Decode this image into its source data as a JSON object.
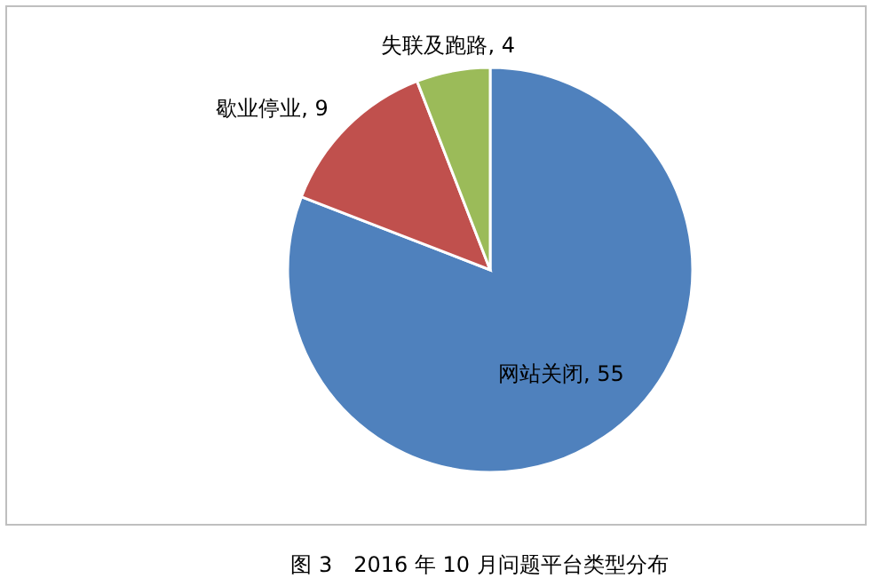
{
  "chart_data": {
    "type": "pie",
    "categories": [
      "网站关闭",
      "歇业停业",
      "失联及跑路"
    ],
    "values": [
      55,
      9,
      4
    ],
    "colors": [
      "#4f81bd",
      "#c0504d",
      "#9bbb59"
    ],
    "value_labels": [
      ", 55",
      ", 9",
      ", 4"
    ],
    "annotations": [
      "图 3　2016 年 10 月问题平台类型分布"
    ]
  }
}
